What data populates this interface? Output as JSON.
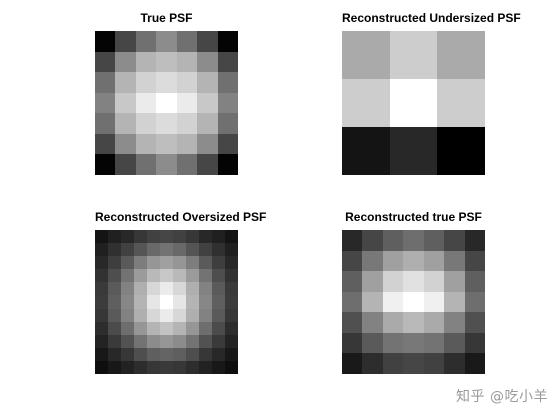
{
  "panels": [
    {
      "id": "true-psf",
      "title": "True PSF",
      "grid": {
        "cols": 7,
        "rows": 7,
        "cells": [
          [
            4,
            70,
            112,
            140,
            112,
            70,
            4
          ],
          [
            70,
            140,
            180,
            190,
            180,
            140,
            70
          ],
          [
            112,
            180,
            210,
            220,
            210,
            180,
            112
          ],
          [
            130,
            200,
            235,
            255,
            235,
            200,
            130
          ],
          [
            112,
            180,
            210,
            220,
            210,
            180,
            112
          ],
          [
            70,
            140,
            180,
            190,
            180,
            140,
            70
          ],
          [
            4,
            70,
            112,
            140,
            112,
            70,
            4
          ]
        ]
      }
    },
    {
      "id": "undersized-psf",
      "title": "Reconstructed Undersized PSF",
      "grid": {
        "cols": 3,
        "rows": 3,
        "cells": [
          [
            170,
            205,
            170
          ],
          [
            205,
            255,
            205
          ],
          [
            20,
            40,
            0
          ]
        ]
      }
    },
    {
      "id": "oversized-psf",
      "title": "Reconstructed Oversized PSF",
      "grid": {
        "cols": 11,
        "rows": 11,
        "cells": [
          [
            20,
            32,
            40,
            55,
            65,
            70,
            65,
            55,
            40,
            32,
            20
          ],
          [
            32,
            48,
            65,
            85,
            105,
            115,
            105,
            85,
            65,
            48,
            32
          ],
          [
            40,
            62,
            90,
            125,
            150,
            160,
            150,
            125,
            90,
            62,
            40
          ],
          [
            50,
            78,
            115,
            155,
            185,
            200,
            185,
            155,
            115,
            78,
            50
          ],
          [
            58,
            90,
            130,
            175,
            215,
            235,
            215,
            175,
            130,
            90,
            58
          ],
          [
            60,
            95,
            135,
            180,
            230,
            255,
            230,
            180,
            135,
            95,
            60
          ],
          [
            55,
            90,
            130,
            175,
            215,
            235,
            215,
            175,
            130,
            90,
            55
          ],
          [
            45,
            75,
            110,
            150,
            180,
            195,
            180,
            150,
            110,
            75,
            45
          ],
          [
            35,
            58,
            82,
            115,
            140,
            150,
            140,
            115,
            82,
            58,
            35
          ],
          [
            24,
            40,
            55,
            78,
            95,
            100,
            95,
            78,
            55,
            40,
            24
          ],
          [
            14,
            24,
            34,
            45,
            55,
            58,
            55,
            45,
            34,
            24,
            14
          ]
        ]
      }
    },
    {
      "id": "true-recon-psf",
      "title": "Reconstructed true PSF",
      "grid": {
        "cols": 7,
        "rows": 7,
        "cells": [
          [
            40,
            70,
            95,
            110,
            95,
            70,
            40
          ],
          [
            70,
            120,
            160,
            175,
            160,
            120,
            70
          ],
          [
            95,
            160,
            210,
            225,
            210,
            160,
            95
          ],
          [
            110,
            180,
            240,
            255,
            240,
            180,
            110
          ],
          [
            80,
            130,
            170,
            185,
            170,
            130,
            80
          ],
          [
            55,
            90,
            115,
            120,
            115,
            90,
            55
          ],
          [
            25,
            45,
            65,
            70,
            65,
            45,
            25
          ]
        ]
      }
    }
  ],
  "watermark": "知乎 @吃小羊"
}
